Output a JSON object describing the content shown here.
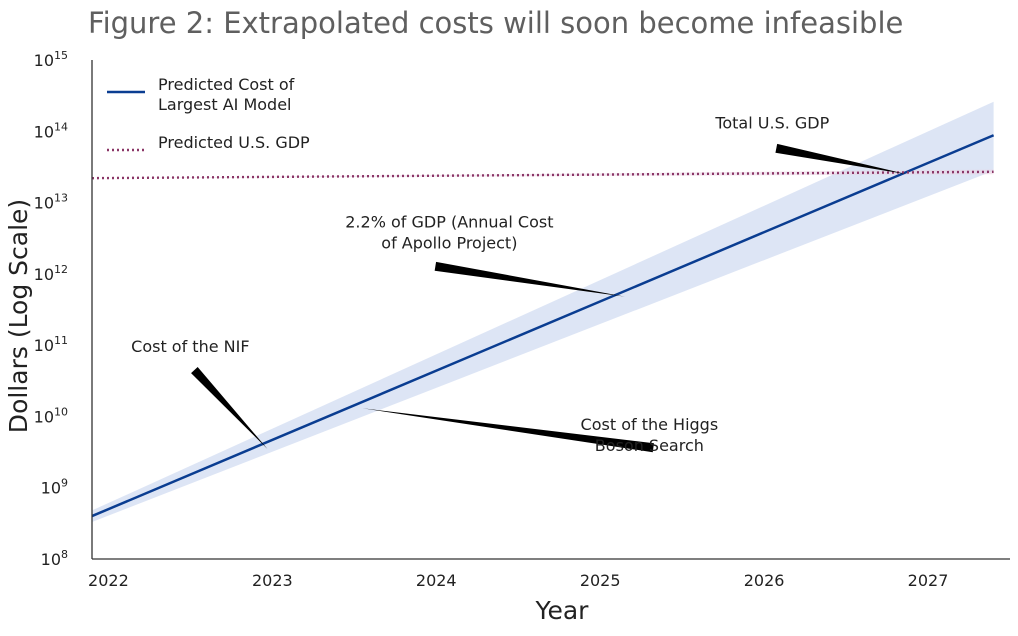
{
  "chart_data": {
    "type": "line",
    "title": "Figure 2: Extrapolated costs will soon become infeasible",
    "xlabel": "Year",
    "ylabel": "Dollars (Log Scale)",
    "y_scale": "log",
    "xlim": [
      2021.9,
      2027.5
    ],
    "ylim": [
      100000000,
      1000000000000000
    ],
    "x_ticks": [
      2022,
      2023,
      2024,
      2025,
      2026,
      2027
    ],
    "y_ticks": [
      {
        "base": "10",
        "exp": "8",
        "value": 100000000
      },
      {
        "base": "10",
        "exp": "9",
        "value": 1000000000
      },
      {
        "base": "10",
        "exp": "10",
        "value": 10000000000
      },
      {
        "base": "10",
        "exp": "11",
        "value": 100000000000
      },
      {
        "base": "10",
        "exp": "12",
        "value": 1000000000000
      },
      {
        "base": "10",
        "exp": "13",
        "value": 10000000000000
      },
      {
        "base": "10",
        "exp": "14",
        "value": 100000000000000
      },
      {
        "base": "10",
        "exp": "15",
        "value": 1000000000000000
      }
    ],
    "grid": false,
    "legend_position": "top-left",
    "series": [
      {
        "name": "Predicted Cost of Largest AI Model",
        "name_lines": [
          "Predicted Cost of",
          "Largest AI Model"
        ],
        "style": "solid",
        "color": "#0a3d91",
        "x": [
          2021.9,
          2027.4
        ],
        "y": [
          400000000,
          88000000000000
        ],
        "band_lower": [
          330000000,
          28000000000000
        ],
        "band_upper": [
          480000000,
          260000000000000
        ],
        "band_color": "#c6d3ee"
      },
      {
        "name": "Predicted U.S. GDP",
        "name_lines": [
          "Predicted U.S. GDP"
        ],
        "style": "dotted",
        "color": "#8a3566",
        "x": [
          2021.9,
          2027.4
        ],
        "y": [
          22000000000000,
          27000000000000
        ],
        "band_lower": [
          22000000000000,
          25000000000000
        ],
        "band_upper": [
          22000000000000,
          29000000000000
        ],
        "band_color": "#ead2e2"
      }
    ],
    "annotations": [
      {
        "lines": [
          "Total U.S. GDP"
        ],
        "point": [
          2026.87,
          25000000000000
        ],
        "text_at": [
          2026.05,
          110000000000000
        ],
        "anchor": "middle"
      },
      {
        "lines": [
          "2.2% of GDP (Annual Cost",
          "of Apollo Project)"
        ],
        "point": [
          2025.15,
          480000000000
        ],
        "text_at": [
          2024.08,
          4500000000000
        ],
        "anchor": "middle"
      },
      {
        "lines": [
          "Cost of the NIF"
        ],
        "point": [
          2022.97,
          3500000000
        ],
        "text_at": [
          2022.5,
          80000000000
        ],
        "anchor": "middle"
      },
      {
        "lines": [
          "Cost of the Higgs",
          "Boson Search"
        ],
        "point": [
          2023.55,
          13000000000
        ],
        "text_at": [
          2025.3,
          6500000000
        ],
        "anchor": "middle"
      }
    ]
  }
}
